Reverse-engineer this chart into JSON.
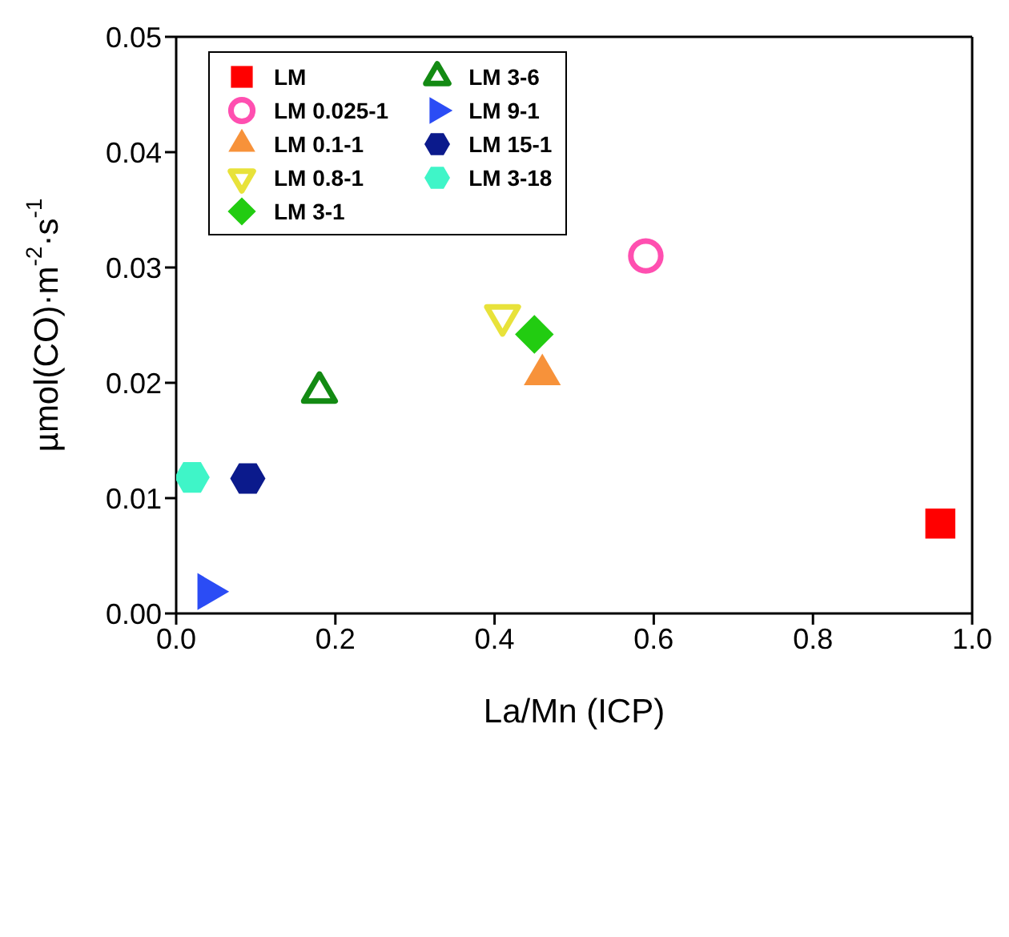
{
  "chart_data": {
    "type": "scatter",
    "xlabel": "La/Mn (ICP)",
    "ylabel": "µmol(CO)·m$^{-2}$·s$^{-1}$",
    "xlim": [
      0,
      1
    ],
    "xticks": [
      {
        "value": 0,
        "label": "0.0"
      },
      {
        "value": 0.2,
        "label": "0.2"
      },
      {
        "value": 0.4,
        "label": "0.4"
      },
      {
        "value": 0.6,
        "label": "0.6"
      },
      {
        "value": 0.8,
        "label": "0.8"
      },
      {
        "value": 1,
        "label": "1.0"
      }
    ],
    "ylim": [
      0,
      0.05
    ],
    "yticks": [
      {
        "value": 0,
        "label": "0.00"
      },
      {
        "value": 0.01,
        "label": "0.01"
      },
      {
        "value": 0.02,
        "label": "0.02"
      },
      {
        "value": 0.03,
        "label": "0.03"
      },
      {
        "value": 0.04,
        "label": "0.04"
      },
      {
        "value": 0.05,
        "label": "0.05"
      }
    ],
    "grid": false,
    "legend": "top left",
    "series": [
      {
        "name": "LM",
        "color": "#ff0000",
        "marker": "square",
        "x": [
          0.96
        ],
        "values": [
          0.0078
        ]
      },
      {
        "name": "LM 0.025-1",
        "color": "#ff4fb0",
        "marker": "circle-open",
        "x": [
          0.59
        ],
        "values": [
          0.031
        ]
      },
      {
        "name": "LM 0.1-1",
        "color": "#f7923a",
        "marker": "triangle",
        "x": [
          0.46
        ],
        "values": [
          0.0207
        ]
      },
      {
        "name": "LM 0.8-1",
        "color": "#e8e23a",
        "marker": "triangle-down-open",
        "x": [
          0.41
        ],
        "values": [
          0.0258
        ]
      },
      {
        "name": "LM 3-1",
        "color": "#22cc11",
        "marker": "diamond",
        "x": [
          0.45
        ],
        "values": [
          0.0242
        ]
      },
      {
        "name": "LM 3-6",
        "color": "#138a13",
        "marker": "triangle-open",
        "x": [
          0.18
        ],
        "values": [
          0.0192
        ]
      },
      {
        "name": "LM 9-1",
        "color": "#2b4cf5",
        "marker": "triangle-right",
        "x": [
          0.04
        ],
        "values": [
          0.0019
        ]
      },
      {
        "name": "LM 15-1",
        "color": "#0b1a8c",
        "x": [
          0.09
        ],
        "values": [
          0.0117
        ]
      },
      {
        "name": "LM 3-18",
        "color": "#3ff5c8",
        "x": [
          0.02
        ],
        "values": [
          0.0118
        ]
      }
    ]
  }
}
